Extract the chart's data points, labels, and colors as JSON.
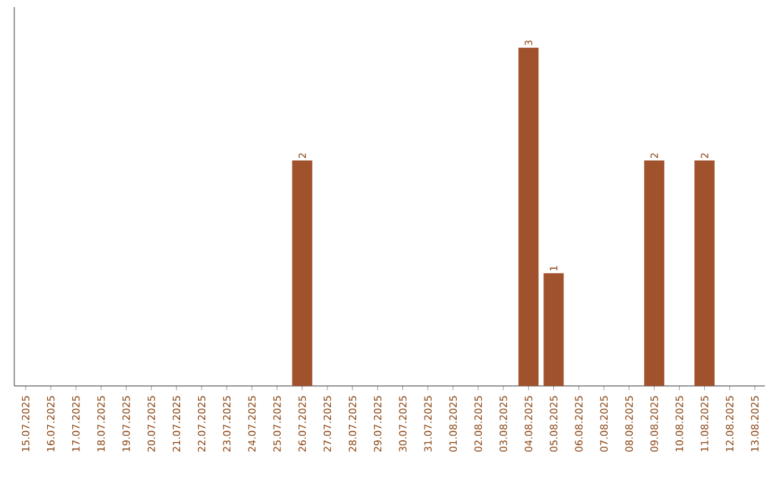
{
  "chart_data": {
    "type": "bar",
    "color": "#a0522d",
    "categories": [
      "15.07.2025",
      "16.07.2025",
      "17.07.2025",
      "18.07.2025",
      "19.07.2025",
      "20.07.2025",
      "21.07.2025",
      "22.07.2025",
      "23.07.2025",
      "24.07.2025",
      "25.07.2025",
      "26.07.2025",
      "27.07.2025",
      "28.07.2025",
      "29.07.2025",
      "30.07.2025",
      "31.07.2025",
      "01.08.2025",
      "02.08.2025",
      "03.08.2025",
      "04.08.2025",
      "05.08.2025",
      "06.08.2025",
      "07.08.2025",
      "08.08.2025",
      "09.08.2025",
      "10.08.2025",
      "11.08.2025",
      "12.08.2025",
      "13.08.2025"
    ],
    "values": [
      0,
      0,
      0,
      0,
      0,
      0,
      0,
      0,
      0,
      0,
      0,
      2,
      0,
      0,
      0,
      0,
      0,
      0,
      0,
      0,
      3,
      1,
      0,
      0,
      0,
      2,
      0,
      2,
      0,
      0
    ],
    "value_labels": [
      null,
      null,
      null,
      null,
      null,
      null,
      null,
      null,
      null,
      null,
      null,
      "2",
      null,
      null,
      null,
      null,
      null,
      null,
      null,
      null,
      "3",
      "1",
      null,
      null,
      null,
      "2",
      null,
      "2",
      null,
      null
    ]
  }
}
